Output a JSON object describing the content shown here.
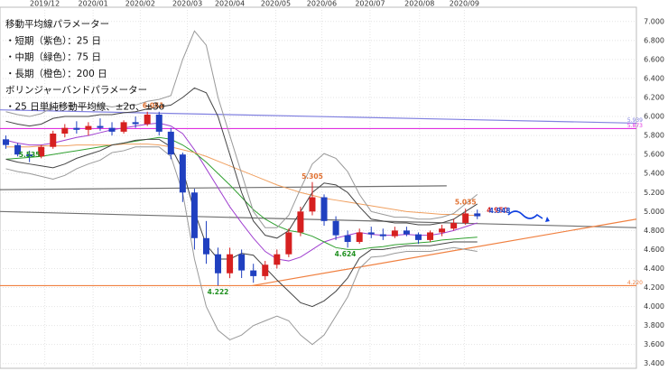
{
  "chart_data": {
    "type": "candlestick",
    "notes": [
      "移動平均線パラメーター",
      "・短期（紫色）：25 日",
      "・中期（緑色）：75 日",
      "・長期（橙色）：200 日",
      "ボリンジャーバンドパラメーター",
      "・25 日単純移動平均線、±2σ、±3σ"
    ],
    "xlim": [
      0,
      54
    ],
    "xticks": [
      {
        "value": 3.8,
        "label": "2019/12"
      },
      {
        "value": 7.9,
        "label": "2020/01"
      },
      {
        "value": 11.9,
        "label": "2020/02"
      },
      {
        "value": 15.9,
        "label": "2020/03"
      },
      {
        "value": 19.5,
        "label": "2020/04"
      },
      {
        "value": 23.4,
        "label": "2020/05"
      },
      {
        "value": 27.3,
        "label": "2020/06"
      },
      {
        "value": 31.4,
        "label": "2020/07"
      },
      {
        "value": 35.6,
        "label": "2020/08"
      },
      {
        "value": 39.4,
        "label": "2020/09"
      }
    ],
    "ylim": [
      3.35,
      7.15
    ],
    "yticks": [
      {
        "value": 3.4,
        "label": "3.400"
      },
      {
        "value": 3.6,
        "label": "3.600"
      },
      {
        "value": 3.8,
        "label": "3.800"
      },
      {
        "value": 4.0,
        "label": "4.000"
      },
      {
        "value": 4.2,
        "label": "4.200"
      },
      {
        "value": 4.4,
        "label": "4.400"
      },
      {
        "value": 4.6,
        "label": "4.600"
      },
      {
        "value": 4.8,
        "label": "4.800"
      },
      {
        "value": 5.0,
        "label": "5.000"
      },
      {
        "value": 5.2,
        "label": "5.200"
      },
      {
        "value": 5.4,
        "label": "5.400"
      },
      {
        "value": 5.6,
        "label": "5.600"
      },
      {
        "value": 5.8,
        "label": "5.800"
      },
      {
        "value": 6.0,
        "label": "6.000"
      },
      {
        "value": 6.2,
        "label": "6.200"
      },
      {
        "value": 6.4,
        "label": "6.400"
      },
      {
        "value": 6.6,
        "label": "6.600"
      },
      {
        "value": 6.8,
        "label": "6.800"
      },
      {
        "value": 7.0,
        "label": "7.000"
      }
    ],
    "grid": true,
    "up_color": "#d62020",
    "down_color": "#2040c0",
    "ohlc": [
      [
        5.76,
        5.8,
        5.66,
        5.7
      ],
      [
        5.7,
        5.72,
        5.58,
        5.6
      ],
      [
        5.6,
        5.64,
        5.52,
        5.58
      ],
      [
        5.58,
        5.7,
        5.56,
        5.68
      ],
      [
        5.68,
        5.85,
        5.66,
        5.82
      ],
      [
        5.82,
        5.92,
        5.78,
        5.88
      ],
      [
        5.88,
        5.95,
        5.82,
        5.86
      ],
      [
        5.86,
        5.94,
        5.8,
        5.9
      ],
      [
        5.9,
        5.98,
        5.85,
        5.88
      ],
      [
        5.88,
        5.94,
        5.8,
        5.84
      ],
      [
        5.84,
        5.96,
        5.82,
        5.94
      ],
      [
        5.94,
        6.0,
        5.88,
        5.92
      ],
      [
        5.92,
        6.05,
        5.9,
        6.02
      ],
      [
        6.02,
        6.05,
        5.8,
        5.84
      ],
      [
        5.84,
        5.88,
        5.55,
        5.6
      ],
      [
        5.6,
        5.62,
        5.1,
        5.2
      ],
      [
        5.2,
        5.24,
        4.6,
        4.72
      ],
      [
        4.72,
        4.9,
        4.45,
        4.55
      ],
      [
        4.55,
        4.62,
        4.22,
        4.35
      ],
      [
        4.35,
        4.62,
        4.3,
        4.55
      ],
      [
        4.55,
        4.6,
        4.3,
        4.38
      ],
      [
        4.38,
        4.45,
        4.25,
        4.32
      ],
      [
        4.32,
        4.48,
        4.28,
        4.44
      ],
      [
        4.44,
        4.6,
        4.4,
        4.55
      ],
      [
        4.55,
        4.82,
        4.52,
        4.78
      ],
      [
        4.78,
        5.05,
        4.74,
        5.0
      ],
      [
        5.0,
        5.31,
        4.96,
        5.15
      ],
      [
        5.15,
        5.18,
        4.85,
        4.9
      ],
      [
        4.9,
        4.95,
        4.7,
        4.75
      ],
      [
        4.75,
        4.8,
        4.62,
        4.68
      ],
      [
        4.68,
        4.82,
        4.66,
        4.78
      ],
      [
        4.78,
        4.84,
        4.72,
        4.76
      ],
      [
        4.76,
        4.82,
        4.7,
        4.74
      ],
      [
        4.74,
        4.84,
        4.72,
        4.8
      ],
      [
        4.8,
        4.84,
        4.74,
        4.76
      ],
      [
        4.76,
        4.78,
        4.66,
        4.7
      ],
      [
        4.7,
        4.8,
        4.68,
        4.78
      ],
      [
        4.78,
        4.86,
        4.74,
        4.82
      ],
      [
        4.82,
        4.92,
        4.8,
        4.88
      ],
      [
        4.88,
        5.03,
        4.86,
        4.98
      ],
      [
        4.98,
        5.02,
        4.92,
        4.95
      ]
    ],
    "series": [
      {
        "color": "#a040d0",
        "values": [
          5.75,
          5.72,
          5.7,
          5.7,
          5.72,
          5.75,
          5.78,
          5.8,
          5.83,
          5.86,
          5.88,
          5.9,
          5.92,
          5.93,
          5.9,
          5.82,
          5.65,
          5.45,
          5.25,
          5.05,
          4.88,
          4.72,
          4.58,
          4.5,
          4.48,
          4.52,
          4.6,
          4.68,
          4.72,
          4.75,
          4.78,
          4.76,
          4.75,
          4.75,
          4.76,
          4.75,
          4.75,
          4.77,
          4.8,
          4.84,
          4.88
        ]
      },
      {
        "color": "#30a030",
        "values": [
          5.55,
          5.56,
          5.57,
          5.58,
          5.6,
          5.62,
          5.64,
          5.66,
          5.68,
          5.7,
          5.72,
          5.74,
          5.76,
          5.78,
          5.76,
          5.7,
          5.62,
          5.52,
          5.4,
          5.28,
          5.15,
          5.02,
          4.92,
          4.85,
          4.8,
          4.78,
          4.74,
          4.68,
          4.62,
          4.6,
          4.6,
          4.62,
          4.63,
          4.65,
          4.66,
          4.67,
          4.68,
          4.7,
          4.71,
          4.72,
          4.73
        ]
      },
      {
        "color": "#f0a060",
        "values": [
          5.68,
          5.68,
          5.68,
          5.69,
          5.69,
          5.69,
          5.7,
          5.7,
          5.7,
          5.7,
          5.71,
          5.71,
          5.71,
          5.7,
          5.68,
          5.65,
          5.62,
          5.58,
          5.53,
          5.48,
          5.43,
          5.38,
          5.33,
          5.28,
          5.24,
          5.2,
          5.17,
          5.14,
          5.12,
          5.1,
          5.08,
          5.06,
          5.04,
          5.02,
          5.0,
          4.99,
          4.98,
          4.97,
          4.97,
          4.96,
          4.96
        ]
      },
      {
        "color": "#444444",
        "values": [
          5.95,
          5.92,
          5.9,
          5.92,
          5.98,
          6.0,
          6.0,
          6.0,
          6.02,
          6.02,
          6.04,
          6.05,
          6.08,
          6.1,
          6.12,
          6.2,
          6.3,
          6.25,
          6.0,
          5.6,
          5.2,
          4.9,
          4.75,
          4.72,
          4.8,
          5.0,
          5.2,
          5.3,
          5.28,
          5.2,
          5.05,
          4.92,
          4.9,
          4.88,
          4.88,
          4.86,
          4.86,
          4.88,
          4.92,
          5.0,
          5.08
        ]
      },
      {
        "color": "#444444",
        "values": [
          5.55,
          5.52,
          5.5,
          5.48,
          5.46,
          5.5,
          5.56,
          5.6,
          5.64,
          5.7,
          5.72,
          5.75,
          5.76,
          5.76,
          5.68,
          5.44,
          5.0,
          4.65,
          4.5,
          4.5,
          4.56,
          4.54,
          4.41,
          4.28,
          4.16,
          4.04,
          4.0,
          4.06,
          4.16,
          4.3,
          4.51,
          4.6,
          4.6,
          4.62,
          4.64,
          4.64,
          4.64,
          4.66,
          4.68,
          4.68,
          4.68
        ]
      },
      {
        "color": "#999999",
        "values": [
          6.05,
          6.02,
          6.0,
          6.03,
          6.1,
          6.12,
          6.11,
          6.1,
          6.12,
          6.1,
          6.12,
          6.12,
          6.16,
          6.18,
          6.22,
          6.6,
          6.9,
          6.75,
          6.2,
          5.8,
          5.4,
          5.0,
          4.83,
          4.83,
          4.96,
          5.24,
          5.5,
          5.61,
          5.56,
          5.42,
          5.18,
          5.0,
          4.97,
          4.94,
          4.94,
          4.92,
          4.92,
          4.94,
          4.98,
          5.08,
          5.18
        ]
      },
      {
        "color": "#999999",
        "values": [
          5.45,
          5.42,
          5.4,
          5.37,
          5.34,
          5.38,
          5.45,
          5.5,
          5.54,
          5.62,
          5.64,
          5.68,
          5.68,
          5.68,
          5.58,
          5.2,
          4.5,
          4.0,
          3.75,
          3.65,
          3.7,
          3.8,
          3.85,
          3.9,
          3.85,
          3.7,
          3.6,
          3.7,
          3.9,
          4.1,
          4.4,
          4.52,
          4.53,
          4.56,
          4.58,
          4.58,
          4.58,
          4.6,
          4.62,
          4.6,
          4.58
        ]
      }
    ],
    "lines": [
      {
        "color": "#8080e0",
        "x": [
          0,
          54
        ],
        "values": [
          6.07,
          5.93
        ],
        "label": "5.939"
      },
      {
        "color": "#e030e0",
        "x": [
          0,
          54
        ],
        "values": [
          5.873,
          5.873
        ],
        "label": "5.873"
      },
      {
        "color": "#f08040",
        "x": [
          0,
          54
        ],
        "values": [
          4.22,
          4.22
        ],
        "label": "4.220"
      },
      {
        "color": "#707070",
        "x": [
          0,
          37.9
        ],
        "values": [
          5.23,
          5.27
        ]
      },
      {
        "color": "#707070",
        "x": [
          0,
          54
        ],
        "values": [
          5.0,
          4.83
        ]
      },
      {
        "color": "#f08040",
        "x": [
          21.4,
          54
        ],
        "values": [
          4.22,
          4.92
        ]
      }
    ],
    "annotations": [
      {
        "x": 13,
        "value": 6.051,
        "label": "6.051",
        "color": "#e07030"
      },
      {
        "x": 2.5,
        "value": 5.535,
        "label": "5.535",
        "color": "#209020"
      },
      {
        "x": 18.5,
        "value": 4.222,
        "label": "4.222",
        "color": "#209020"
      },
      {
        "x": 26.5,
        "value": 5.305,
        "label": "5.305",
        "color": "#e07030"
      },
      {
        "x": 29.3,
        "value": 4.624,
        "label": "4.624",
        "color": "#209020"
      },
      {
        "x": 39.5,
        "value": 5.035,
        "label": "5.035",
        "color": "#e07030"
      },
      {
        "x": 42.2,
        "value": 4.95,
        "label": "4.950",
        "color": "#d02020"
      },
      {
        "x": 42.4,
        "value": 4.948,
        "label": "4.948",
        "color": "#2050d0"
      }
    ]
  }
}
